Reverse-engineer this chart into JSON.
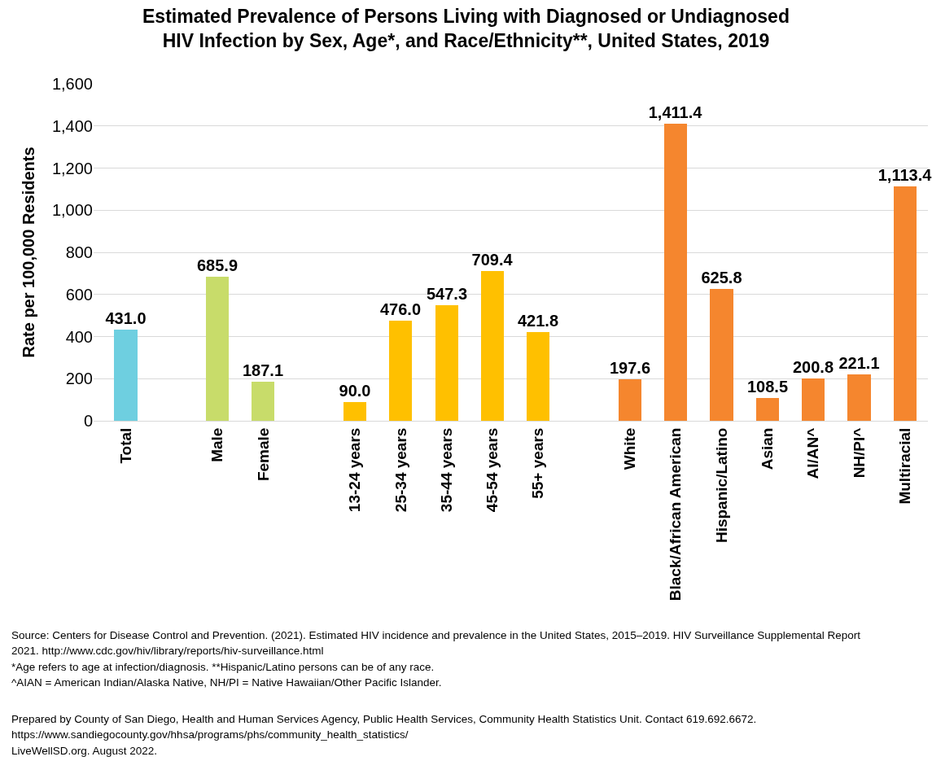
{
  "chart_data": {
    "type": "bar",
    "title": "Estimated Prevalence of Persons Living with Diagnosed or Undiagnosed\nHIV Infection by Sex, Age*, and Race/Ethnicity**, United States, 2019",
    "ylabel": "Rate per 100,000 Residents",
    "categories": [
      "Total",
      null,
      "Male",
      "Female",
      null,
      "13-24 years",
      "25-34 years",
      "35-44 years",
      "45-54 years",
      "55+ years",
      null,
      "White",
      "Black/African American",
      "Hispanic/Latino",
      "Asian",
      "AI/AN^",
      "NH/PI^",
      "Multiracial"
    ],
    "values": [
      431.0,
      null,
      685.9,
      187.1,
      null,
      90.0,
      476.0,
      547.3,
      709.4,
      421.8,
      null,
      197.6,
      1411.4,
      625.8,
      108.5,
      200.8,
      221.1,
      1113.4
    ],
    "colors": [
      "#6ecfe0",
      null,
      "#c8dc6a",
      "#c8dc6a",
      null,
      "#ffc000",
      "#ffc000",
      "#ffc000",
      "#ffc000",
      "#ffc000",
      null,
      "#f5862e",
      "#f5862e",
      "#f5862e",
      "#f5862e",
      "#f5862e",
      "#f5862e",
      "#f5862e"
    ],
    "value_labels": [
      "431.0",
      null,
      "685.9",
      "187.1",
      null,
      "90.0",
      "476.0",
      "547.3",
      "709.4",
      "421.8",
      null,
      "197.6",
      "1,411.4",
      "625.8",
      "108.5",
      "200.8",
      "221.1",
      "1,113.4"
    ],
    "ylim": [
      0,
      1600
    ],
    "yticks": [
      {
        "value": 0,
        "label": "0"
      },
      {
        "value": 200,
        "label": "200"
      },
      {
        "value": 400,
        "label": "400"
      },
      {
        "value": 600,
        "label": "600"
      },
      {
        "value": 800,
        "label": "800"
      },
      {
        "value": 1000,
        "label": "1,000"
      },
      {
        "value": 1200,
        "label": "1,200"
      },
      {
        "value": 1400,
        "label": "1,400"
      },
      {
        "value": 1600,
        "label": "1,600"
      }
    ],
    "grid": "y",
    "annotations": [
      "Source: Centers for Disease Control and Prevention. (2021). Estimated HIV incidence and prevalence in the United States, 2015–2019. HIV Surveillance Supplemental Report",
      "2021. http://www.cdc.gov/hiv/library/reports/hiv-surveillance.html",
      "*Age refers to age at infection/diagnosis. **Hispanic/Latino persons can be of any race.",
      "^AIAN = American Indian/Alaska Native, NH/PI = Native Hawaiian/Other Pacific Islander.",
      "Prepared by County of San Diego, Health and Human Services Agency, Public Health Services, Community Health Statistics Unit. Contact 619.692.6672.",
      "https://www.sandiegocounty.gov/hhsa/programs/phs/community_health_statistics/",
      "LiveWellSD.org. August 2022."
    ]
  }
}
